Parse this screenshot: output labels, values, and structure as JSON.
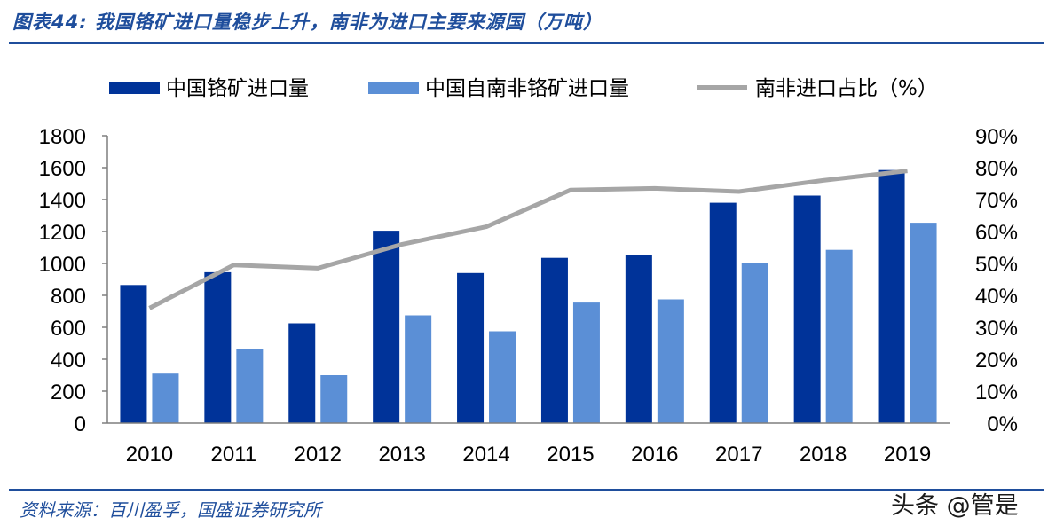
{
  "header": {
    "title": "图表44: 我国铬矿进口量稳步上升，南非为进口主要来源国（万吨）"
  },
  "footer": {
    "source": "资料来源：百川盈孚，国盛证券研究所",
    "watermark": "头条 @管是"
  },
  "colors": {
    "primary": "#003399",
    "secondary": "#5b8fd6",
    "line": "#a6a6a6",
    "accent": "#1f4e9c"
  },
  "chart_data": {
    "type": "bar",
    "categories": [
      "2010",
      "2011",
      "2012",
      "2013",
      "2014",
      "2015",
      "2016",
      "2017",
      "2018",
      "2019"
    ],
    "series": [
      {
        "name": "中国铬矿进口量",
        "type": "bar",
        "axis": "left",
        "values": [
          865,
          945,
          625,
          1205,
          940,
          1035,
          1055,
          1380,
          1425,
          1585
        ]
      },
      {
        "name": "中国自南非铬矿进口量",
        "type": "bar",
        "axis": "left",
        "values": [
          310,
          465,
          300,
          675,
          575,
          755,
          775,
          1000,
          1085,
          1255
        ]
      },
      {
        "name": "南非进口占比（%）",
        "type": "line",
        "axis": "right",
        "values": [
          36,
          49.5,
          48.5,
          56,
          61.5,
          73,
          73.5,
          72.5,
          76,
          79
        ]
      }
    ],
    "ylim": [
      0,
      1800
    ],
    "yticks": [
      "0",
      "200",
      "400",
      "600",
      "800",
      "1000",
      "1200",
      "1400",
      "1600",
      "1800"
    ],
    "y2lim": [
      0,
      90
    ],
    "y2ticks": [
      "0%",
      "10%",
      "20%",
      "30%",
      "40%",
      "50%",
      "60%",
      "70%",
      "80%",
      "90%"
    ],
    "legend": "top",
    "grid": false
  }
}
